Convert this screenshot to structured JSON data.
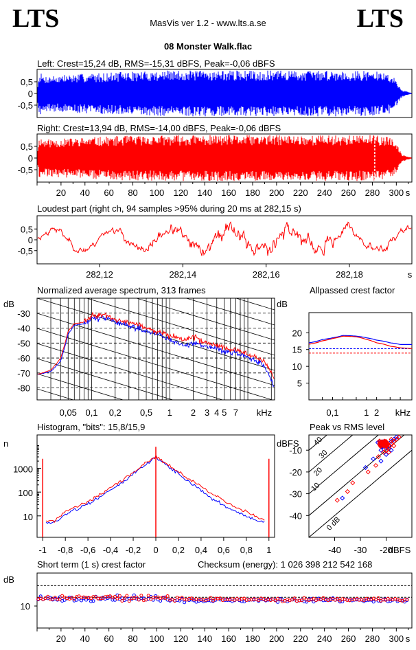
{
  "header": {
    "logo_left": "LTS",
    "logo_right": "LTS",
    "app_title": "MasVis ver 1.2 - www.lts.a.se",
    "file_name": "08 Monster Walk.flac"
  },
  "colors": {
    "left": "#0000ff",
    "right": "#ff0000",
    "axis": "#000000"
  },
  "chart_data": [
    {
      "id": "left-waveform",
      "type": "area",
      "title": "Left: Crest=15,24 dB, RMS=-15,31 dBFS, Peak=-0,06 dBFS",
      "x_range_s": [
        0,
        313
      ],
      "ylim": [
        -1,
        1
      ],
      "y_ticks": [
        {
          "v": 0.5,
          "l": "0,5"
        },
        {
          "v": 0,
          "l": "0"
        },
        {
          "v": -0.5,
          "l": "-0,5"
        }
      ],
      "envelope": {
        "x": [
          0,
          2,
          5,
          15,
          40,
          70,
          110,
          150,
          200,
          250,
          280,
          295,
          300,
          305,
          313
        ],
        "y": [
          0.2,
          0.95,
          0.75,
          0.78,
          0.85,
          0.92,
          0.98,
          0.98,
          0.98,
          0.98,
          0.96,
          0.85,
          0.55,
          0.15,
          0.02
        ]
      },
      "series": [
        {
          "name": "Left",
          "color": "#0000ff"
        }
      ]
    },
    {
      "id": "right-waveform",
      "type": "area",
      "title": "Right: Crest=13,94 dB, RMS=-14,00 dBFS, Peak=-0,06 dBFS",
      "x_range_s": [
        0,
        313
      ],
      "ylim": [
        -1,
        1
      ],
      "y_ticks": [
        {
          "v": 0.5,
          "l": "0,5"
        },
        {
          "v": 0,
          "l": "0"
        },
        {
          "v": -0.5,
          "l": "-0,5"
        }
      ],
      "x_ticks": [
        "20",
        "40",
        "60",
        "80",
        "100",
        "120",
        "140",
        "160",
        "180",
        "200",
        "220",
        "240",
        "260",
        "280",
        "300",
        "s"
      ],
      "marker_s": 282,
      "envelope": {
        "x": [
          0,
          2,
          5,
          15,
          40,
          70,
          110,
          150,
          200,
          250,
          280,
          295,
          300,
          305,
          313
        ],
        "y": [
          0.25,
          0.95,
          0.8,
          0.82,
          0.88,
          0.95,
          0.98,
          0.98,
          0.98,
          0.98,
          0.98,
          0.9,
          0.6,
          0.15,
          0.02
        ]
      },
      "series": [
        {
          "name": "Right",
          "color": "#ff0000"
        }
      ]
    },
    {
      "id": "loudest-part",
      "type": "line",
      "title": "Loudest part (right ch, 94 samples >95% during 20 ms at 282,15 s)",
      "xlim": [
        282.105,
        282.195
      ],
      "ylim": [
        -1,
        1
      ],
      "x_ticks": [
        "282,12",
        "282,14",
        "282,16",
        "282,18",
        "s"
      ],
      "y_ticks": [
        {
          "v": 0.5,
          "l": "0,5"
        },
        {
          "v": 0,
          "l": "0"
        },
        {
          "v": -0.5,
          "l": "-0,5"
        }
      ],
      "series": [
        {
          "name": "Right",
          "color": "#ff0000"
        }
      ]
    },
    {
      "id": "avg-spectrum",
      "type": "line",
      "title": "Normalized average spectrum, 313 frames",
      "ylabel": "dB",
      "xlabel": "kHz",
      "xlim_khz": [
        0.02,
        22
      ],
      "ylim_db": [
        -88,
        -20
      ],
      "y_ticks": [
        "-30",
        "-40",
        "-50",
        "-60",
        "-70",
        "-80"
      ],
      "x_ticks": [
        "0,05",
        "0,1",
        "0,2",
        "0,5",
        "1",
        "2",
        "3",
        "4",
        "5",
        "7",
        "kHz"
      ],
      "x_khz": [
        0.02,
        0.03,
        0.04,
        0.05,
        0.06,
        0.08,
        0.1,
        0.15,
        0.2,
        0.3,
        0.5,
        0.7,
        1,
        1.5,
        2,
        3,
        5,
        7,
        10,
        13,
        16,
        20,
        22
      ],
      "series": [
        {
          "name": "Left",
          "color": "#0000ff",
          "y": [
            -71,
            -69,
            -62,
            -44,
            -38,
            -37,
            -34,
            -33,
            -36,
            -38,
            -42,
            -44,
            -48,
            -52,
            -50,
            -52,
            -55,
            -57,
            -60,
            -62,
            -65,
            -75,
            -80
          ]
        },
        {
          "name": "Right",
          "color": "#ff0000",
          "y": [
            -71,
            -68,
            -60,
            -42,
            -37,
            -36,
            -32,
            -31,
            -35,
            -36,
            -40,
            -42,
            -45,
            -48,
            -46,
            -50,
            -53,
            -55,
            -58,
            -60,
            -62,
            -70,
            -73
          ]
        }
      ]
    },
    {
      "id": "allpassed-crest",
      "type": "line",
      "title": "Allpassed crest factor",
      "ylabel": "dB",
      "xlabel": "kHz",
      "xlim_khz": [
        0.02,
        22
      ],
      "ylim_db": [
        0,
        26
      ],
      "y_ticks": [
        "20",
        "15",
        "10",
        "5"
      ],
      "x_ticks": [
        "0,1",
        "1",
        "2",
        "kHz"
      ],
      "ref_lines_db": [
        15.24,
        13.94
      ],
      "x_khz": [
        0.02,
        0.05,
        0.1,
        0.2,
        0.5,
        1,
        2,
        5,
        10,
        22
      ],
      "series": [
        {
          "name": "Left",
          "color": "#0000ff",
          "y": [
            17,
            18,
            18.5,
            19.2,
            19,
            18.5,
            17.8,
            17,
            16.5,
            16.5
          ]
        },
        {
          "name": "Right",
          "color": "#ff0000",
          "y": [
            16.6,
            17.6,
            18.3,
            19.0,
            18.8,
            18.0,
            17.0,
            16.0,
            15.5,
            15.3
          ]
        }
      ]
    },
    {
      "id": "histogram",
      "type": "line",
      "title": "Histogram, \"bits\": 15,8/15,9",
      "ylabel": "n",
      "xlim": [
        -1.05,
        1.05
      ],
      "x_ticks": [
        "-1",
        "-0,8",
        "-0,6",
        "-0,4",
        "-0,2",
        "0",
        "0,2",
        "0,4",
        "0,6",
        "0,8",
        "1"
      ],
      "y_ticks": [
        "1000",
        "100",
        "10"
      ],
      "x": [
        -1,
        -0.9,
        -0.8,
        -0.7,
        -0.6,
        -0.5,
        -0.4,
        -0.3,
        -0.2,
        -0.1,
        0,
        0.1,
        0.2,
        0.3,
        0.4,
        0.5,
        0.6,
        0.7,
        0.8,
        0.9,
        1
      ],
      "series": [
        {
          "name": "Left",
          "color": "#0000ff",
          "y": [
            5,
            5,
            12,
            20,
            30,
            60,
            120,
            250,
            600,
            1300,
            3000,
            1300,
            600,
            250,
            120,
            50,
            28,
            16,
            10,
            6,
            5
          ]
        },
        {
          "name": "Right",
          "color": "#ff0000",
          "y": [
            6,
            6,
            15,
            25,
            40,
            80,
            160,
            300,
            700,
            1500,
            3200,
            1500,
            700,
            320,
            180,
            80,
            45,
            25,
            15,
            8,
            6
          ]
        }
      ],
      "end_spikes": [
        {
          "x": -1,
          "y": 2500
        },
        {
          "x": 0,
          "y": 8000
        },
        {
          "x": 1,
          "y": 2500
        }
      ]
    },
    {
      "id": "peak-vs-rms",
      "type": "scatter",
      "title": "Peak vs RMS level",
      "ylabel": "dBFS",
      "xlabel": "dBFS",
      "xlim": [
        -50,
        -10
      ],
      "ylim": [
        -50,
        -3
      ],
      "y_ticks": [
        "-10",
        "-20",
        "-30",
        "-40"
      ],
      "x_ticks": [
        "-40",
        "-30",
        "-20",
        "dBFS"
      ],
      "crest_lines": [
        "0 dB",
        "10",
        "20",
        "30",
        "40"
      ],
      "series": [
        {
          "name": "Left",
          "color": "#0000ff",
          "points": [
            [
              -37,
              -32
            ],
            [
              -28,
              -18
            ],
            [
              -25,
              -14
            ],
            [
              -22,
              -10
            ],
            [
              -20,
              -9
            ],
            [
              -19,
              -8
            ],
            [
              -18,
              -6
            ],
            [
              -17,
              -5
            ],
            [
              -16,
              -4
            ],
            [
              -20,
              -12
            ],
            [
              -22,
              -15
            ],
            [
              -18,
              -10
            ],
            [
              -21,
              -7
            ]
          ]
        },
        {
          "name": "Right",
          "color": "#ff0000",
          "points": [
            [
              -39,
              -33
            ],
            [
              -35,
              -29
            ],
            [
              -33,
              -25
            ],
            [
              -27,
              -20
            ],
            [
              -24,
              -17
            ],
            [
              -23,
              -13
            ],
            [
              -21,
              -11
            ],
            [
              -20,
              -10
            ],
            [
              -19,
              -9
            ],
            [
              -18,
              -7
            ],
            [
              -17,
              -6
            ],
            [
              -16,
              -5
            ],
            [
              -15,
              -4
            ],
            [
              -17,
              -8
            ],
            [
              -19,
              -11
            ],
            [
              -20,
              -8
            ],
            [
              -18,
              -5
            ]
          ]
        }
      ]
    },
    {
      "id": "short-term-crest",
      "type": "scatter",
      "title": "Short term (1 s) crest factor",
      "checksum": "Checksum (energy):  1 026 398 212 542 168",
      "ylabel": "dB",
      "x_range_s": [
        0,
        313
      ],
      "ylim": [
        0,
        25
      ],
      "y_ticks": [
        "10"
      ],
      "x_ticks": [
        "20",
        "40",
        "60",
        "80",
        "100",
        "120",
        "140",
        "160",
        "180",
        "200",
        "220",
        "240",
        "260",
        "280",
        "300",
        "s"
      ],
      "ref_lines_db": [
        15.24,
        13.94,
        10
      ],
      "series": [
        {
          "name": "Left",
          "color": "#0000ff"
        },
        {
          "name": "Right",
          "color": "#ff0000"
        }
      ]
    }
  ]
}
